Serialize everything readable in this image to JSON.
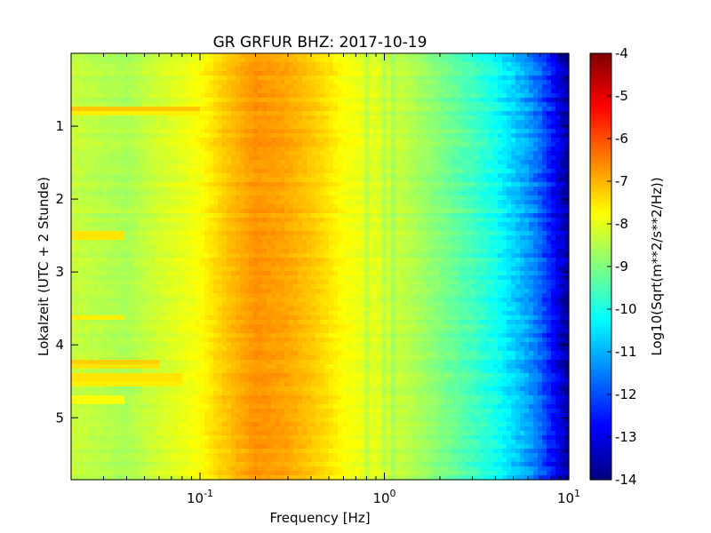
{
  "chart_data": {
    "type": "heatmap",
    "title": "GR GRFUR BHZ: 2017-10-19",
    "xlabel": "Frequency [Hz]",
    "ylabel": "Lokalzeit (UTC + 2 Stunde)",
    "x_scale": "log",
    "xlim": [
      0.02,
      10
    ],
    "ylim": [
      5.85,
      0
    ],
    "x_ticks": [
      {
        "value": 0.1,
        "base": "10",
        "exp": "-1"
      },
      {
        "value": 1,
        "base": "10",
        "exp": "0"
      },
      {
        "value": 10,
        "base": "10",
        "exp": "1"
      }
    ],
    "y_ticks": [
      {
        "value": 1,
        "label": "1"
      },
      {
        "value": 2,
        "label": "2"
      },
      {
        "value": 3,
        "label": "3"
      },
      {
        "value": 4,
        "label": "4"
      },
      {
        "value": 5,
        "label": "5"
      }
    ],
    "colorbar": {
      "label": "Log10(Sqrt(m**2/s**2/Hz))",
      "range": [
        -14,
        -4
      ],
      "colormap": "jet",
      "ticks": [
        {
          "value": -4,
          "label": "-4"
        },
        {
          "value": -5,
          "label": "-5"
        },
        {
          "value": -6,
          "label": "-6"
        },
        {
          "value": -7,
          "label": "-7"
        },
        {
          "value": -8,
          "label": "-8"
        },
        {
          "value": -9,
          "label": "-9"
        },
        {
          "value": -10,
          "label": "-10"
        },
        {
          "value": -11,
          "label": "-11"
        },
        {
          "value": -12,
          "label": "-12"
        },
        {
          "value": -13,
          "label": "-13"
        },
        {
          "value": -14,
          "label": "-14"
        }
      ]
    },
    "spectrum_profile": {
      "frequency_hz": [
        0.02,
        0.04,
        0.06,
        0.08,
        0.1,
        0.13,
        0.16,
        0.2,
        0.25,
        0.3,
        0.4,
        0.5,
        0.6,
        0.8,
        1,
        1.5,
        2,
        3,
        4,
        5,
        6,
        7,
        8,
        9,
        10
      ],
      "level": [
        -8.3,
        -8.6,
        -8.2,
        -8.0,
        -7.8,
        -7.3,
        -7.0,
        -6.7,
        -6.8,
        -6.9,
        -7.2,
        -7.5,
        -7.8,
        -8.0,
        -8.1,
        -8.6,
        -9.0,
        -9.6,
        -10.1,
        -10.7,
        -11.2,
        -11.8,
        -12.5,
        -13.2,
        -13.8
      ]
    },
    "horizontal_features": [
      {
        "time": 0.78,
        "f_max": 0.1,
        "level": -7.2
      },
      {
        "time": 0.83,
        "f_max": 0.1,
        "level": -7.6
      },
      {
        "time": 2.5,
        "f_max": 0.04,
        "level": -7.5
      },
      {
        "time": 3.62,
        "f_max": 0.04,
        "level": -7.6
      },
      {
        "time": 4.25,
        "f_max": 0.06,
        "level": -7.3
      },
      {
        "time": 4.3,
        "f_max": 0.06,
        "level": -7.5
      },
      {
        "time": 4.45,
        "f_max": 0.08,
        "level": -7.5
      },
      {
        "time": 4.55,
        "f_max": 0.08,
        "level": -7.6
      },
      {
        "time": 4.75,
        "f_max": 0.04,
        "level": -7.8
      }
    ],
    "vertical_lines_hz": [
      0.8,
      1.0,
      1.1
    ]
  }
}
